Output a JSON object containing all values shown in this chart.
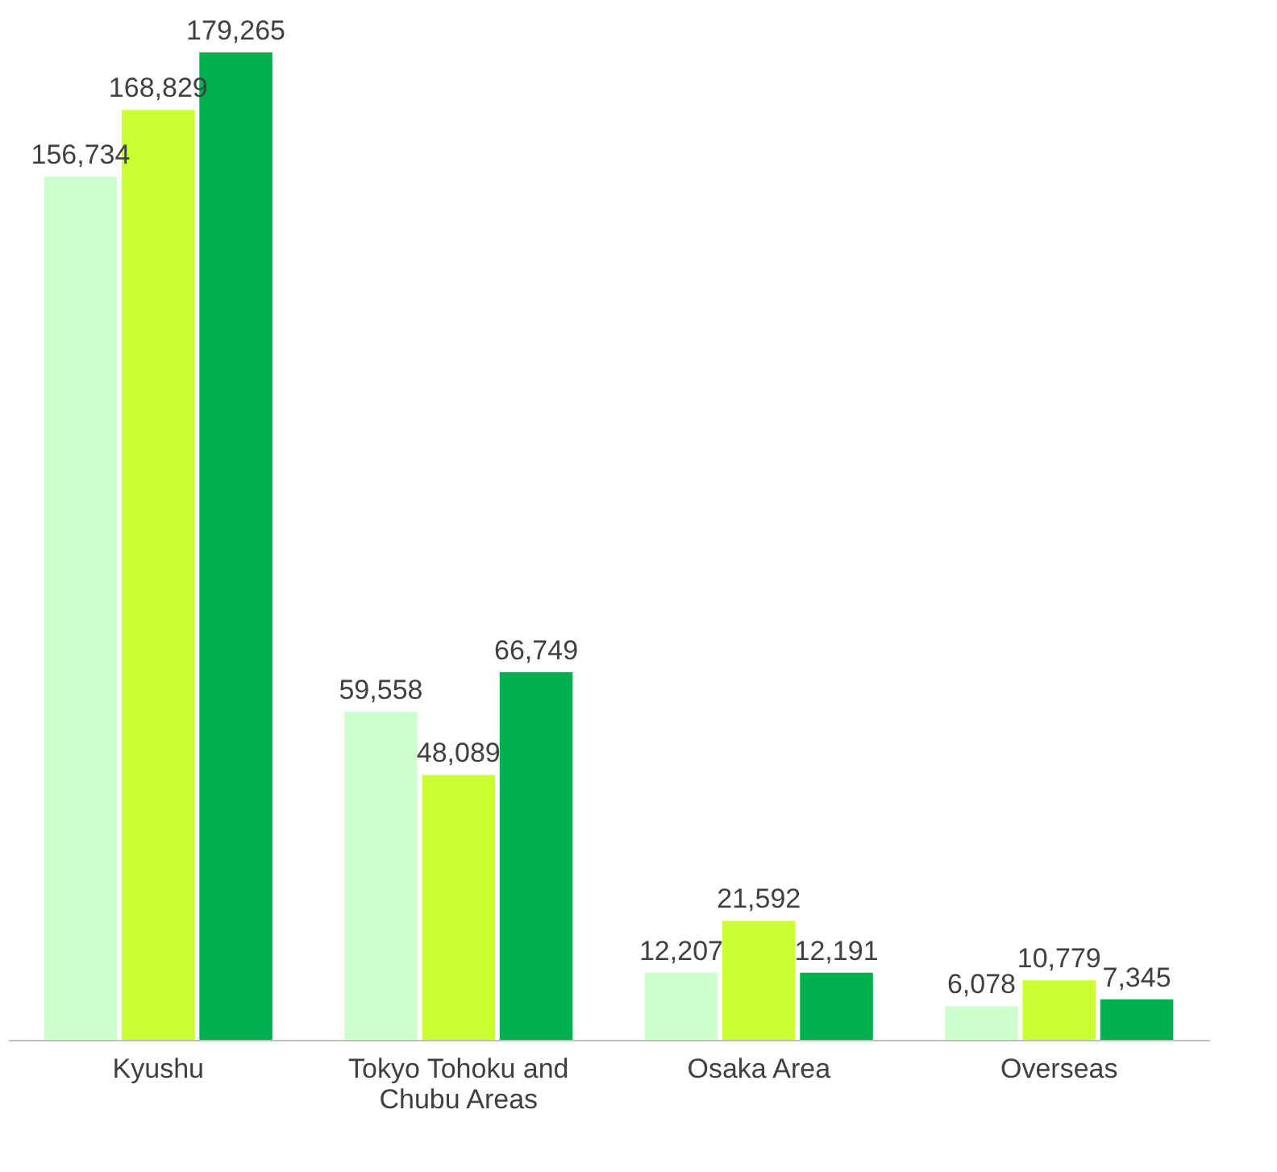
{
  "chart_data": {
    "type": "bar",
    "categories": [
      "Kyushu",
      "Tokyo Tohoku and Chubu Areas",
      "Osaka Area",
      "Overseas"
    ],
    "series": [
      {
        "color": "#ccffcc",
        "values": [
          156734,
          59558,
          12207,
          6078
        ],
        "value_labels": [
          "156,734",
          "59,558",
          "12,207",
          "6,078"
        ]
      },
      {
        "color": "#ccff33",
        "values": [
          168829,
          48089,
          21592,
          10779
        ],
        "value_labels": [
          "168,829",
          "48,089",
          "21,592",
          "10,779"
        ]
      },
      {
        "color": "#00b050",
        "values": [
          179265,
          66749,
          12191,
          7345
        ],
        "value_labels": [
          "179,265",
          "66,749",
          "12,191",
          "7,345"
        ]
      }
    ],
    "grid": false,
    "legend": false
  }
}
